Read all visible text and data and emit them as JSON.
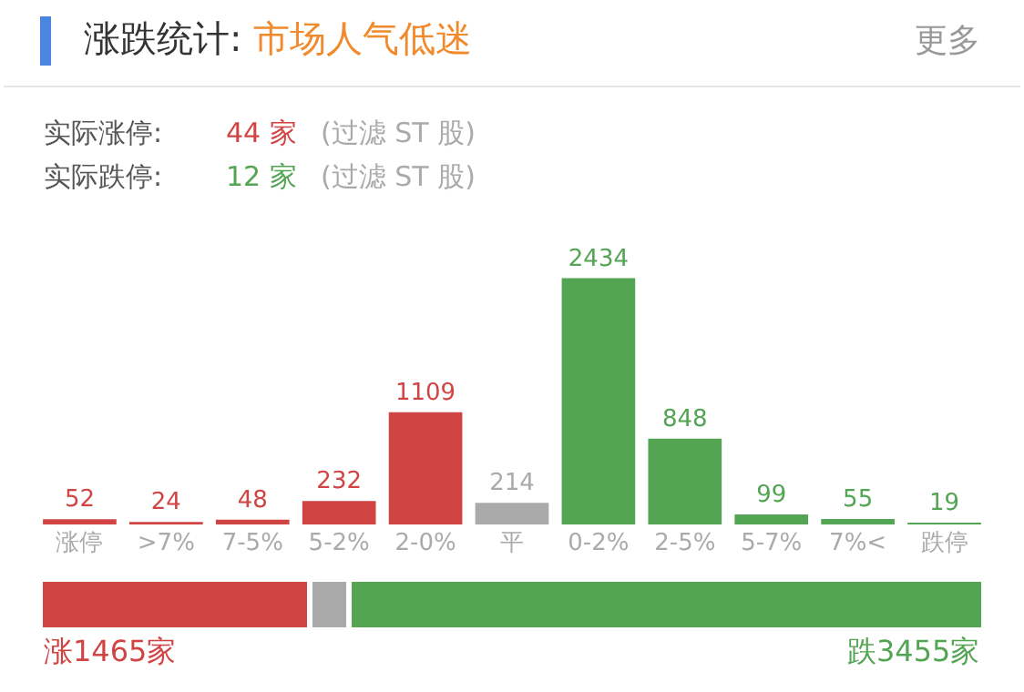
{
  "chart_data": [
    {
      "type": "bar",
      "title": "涨跌统计:",
      "subtitle": "市场人气低迷",
      "annotations": [
        "更多",
        "实际涨停:",
        "44 家",
        "(过滤 ST 股)",
        "实际跌停:",
        "12 家",
        "(过滤 ST 股)"
      ],
      "categories": [
        "涨停",
        ">7%",
        "7-5%",
        "5-2%",
        "2-0%",
        "平",
        "0-2%",
        "2-5%",
        "5-7%",
        "7%<",
        "跌停"
      ],
      "values": [
        52,
        24,
        48,
        232,
        1109,
        214,
        2434,
        848,
        99,
        55,
        19
      ],
      "colors": [
        "#d04543",
        "#d04543",
        "#d04543",
        "#d04543",
        "#d04543",
        "#aaaaaa",
        "#53a553",
        "#53a553",
        "#53a553",
        "#53a553",
        "#53a553"
      ],
      "data_labels": true,
      "grid": false,
      "legend": false
    },
    {
      "type": "bar",
      "orientation": "horizontal",
      "stacked": true,
      "categories": [
        null
      ],
      "xlim": [
        0,
        5134
      ],
      "legend": false,
      "grid": false,
      "series": [
        {
          "color": "#d04543",
          "values": [
            1465
          ],
          "value_labels": [
            "涨1465家"
          ]
        },
        {
          "color": "#aaaaaa",
          "values": [
            214
          ],
          "value_labels": [
            null
          ]
        },
        {
          "color": "#53a553",
          "values": [
            3455
          ],
          "value_labels": [
            "跌3455家"
          ]
        }
      ]
    }
  ]
}
